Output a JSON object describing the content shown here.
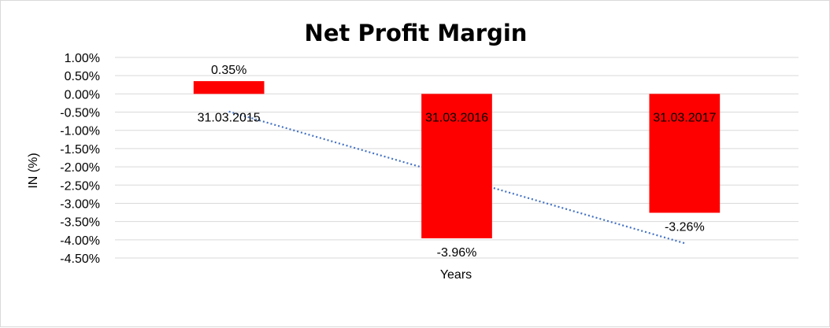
{
  "chart_data": {
    "type": "bar",
    "title": "Net Profit Margin",
    "xlabel": "Years",
    "ylabel": "IN (%)",
    "categories": [
      "31.03.2015",
      "31.03.2016",
      "31.03.2017"
    ],
    "series": [
      {
        "values": [
          0.35,
          -3.96,
          -3.26
        ],
        "data_labels": [
          "0.35%",
          "-3.96%",
          "-3.26%"
        ]
      }
    ],
    "y_ticks": [
      1.0,
      0.5,
      0.0,
      -0.5,
      -1.0,
      -1.5,
      -2.0,
      -2.5,
      -3.0,
      -3.5,
      -4.0,
      -4.5
    ],
    "y_tick_labels": [
      "1.00%",
      "0.50%",
      "0.00%",
      "-0.50%",
      "-1.00%",
      "-1.50%",
      "-2.00%",
      "-2.50%",
      "-3.00%",
      "-3.50%",
      "-4.00%",
      "-4.50%"
    ],
    "ylim": [
      -4.5,
      1.0
    ],
    "grid": true,
    "legend": "none",
    "trendline": {
      "type": "linear",
      "style": "dotted"
    },
    "colors": {
      "bar": "#ff0000",
      "trendline": "#4472c4",
      "grid": "#d9d9d9"
    }
  }
}
